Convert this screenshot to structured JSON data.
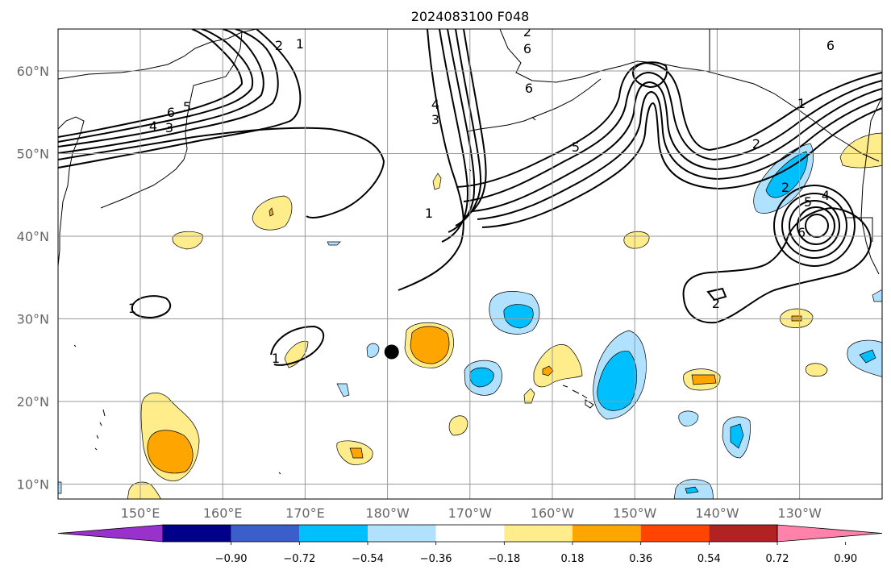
{
  "title": "2024083100 F048",
  "lat_labels": [
    "60°N",
    "50°N",
    "40°N",
    "30°N",
    "20°N",
    "10°N"
  ],
  "lon_labels": [
    "150°E",
    "160°E",
    "170°E",
    "180°W",
    "170°W",
    "160°W",
    "150°W",
    "140°W",
    "130°W"
  ],
  "colorbar": {
    "ticks": [
      "−0.90",
      "−0.72",
      "−0.54",
      "−0.36",
      "−0.18",
      "0.18",
      "0.36",
      "0.54",
      "0.72",
      "0.90"
    ],
    "colors": [
      "#9932cc",
      "#00008b",
      "#3a5fcd",
      "#00bfff",
      "#b0e2ff",
      "#ffffff",
      "#ffec8b",
      "#ffa500",
      "#ff4500",
      "#b22222",
      "#ff82ab"
    ]
  },
  "contour_labels": [
    "6",
    "4",
    "3",
    "2",
    "1",
    "1",
    "2",
    "5",
    "6",
    "6",
    "4",
    "3",
    "1",
    "5",
    "2",
    "6",
    "4",
    "2",
    "5",
    "6",
    "2",
    "1",
    "1"
  ],
  "map": {
    "grid_lat": [
      60,
      50,
      40,
      30,
      20,
      10
    ],
    "grid_lon": [
      150,
      160,
      170,
      180,
      -170,
      -160,
      -150,
      -140,
      -130
    ],
    "marker_lon": 180.5,
    "marker_lat": 26
  }
}
